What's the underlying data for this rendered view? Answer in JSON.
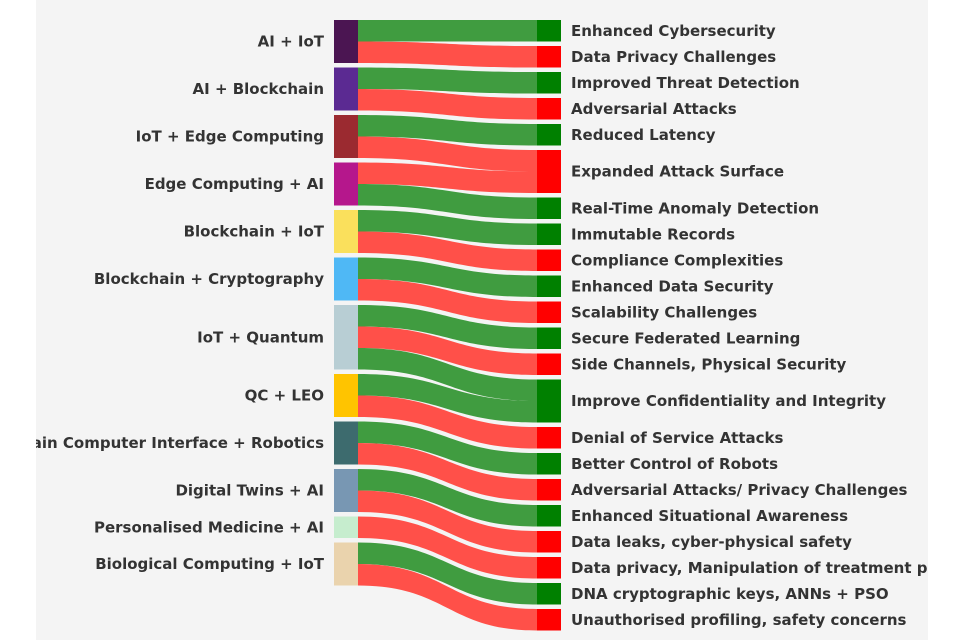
{
  "colors": {
    "positive": "#008000",
    "negative": "#ff0000",
    "positive_link": "#3c9a3c",
    "negative_link": "#ff4d45"
  },
  "sources": [
    {
      "id": "s0",
      "label": "AI + IoT",
      "color": "#4b1552"
    },
    {
      "id": "s1",
      "label": "AI + Blockchain",
      "color": "#5b2a92"
    },
    {
      "id": "s2",
      "label": "IoT + Edge Computing",
      "color": "#9b2a30"
    },
    {
      "id": "s3",
      "label": "Edge Computing + AI",
      "color": "#b5178c"
    },
    {
      "id": "s4",
      "label": "Blockchain + IoT",
      "color": "#fae05c"
    },
    {
      "id": "s5",
      "label": "Blockchain + Cryptography",
      "color": "#4fb8f5"
    },
    {
      "id": "s6",
      "label": "IoT + Quantum",
      "color": "#b8ced4"
    },
    {
      "id": "s7",
      "label": "QC + LEO",
      "color": "#ffc400"
    },
    {
      "id": "s8",
      "label": "Brain Computer Interface + Robotics",
      "color": "#3d6b6e"
    },
    {
      "id": "s9",
      "label": "Digital Twins + AI",
      "color": "#7897b3"
    },
    {
      "id": "s10",
      "label": "Personalised Medicine + AI",
      "color": "#c6edce"
    },
    {
      "id": "s11",
      "label": "Biological Computing + IoT",
      "color": "#ead3ad"
    }
  ],
  "targets": [
    {
      "id": "t0",
      "label": "Enhanced Cybersecurity",
      "polarity": "positive"
    },
    {
      "id": "t1",
      "label": "Data Privacy Challenges",
      "polarity": "negative"
    },
    {
      "id": "t2",
      "label": "Improved Threat Detection",
      "polarity": "positive"
    },
    {
      "id": "t3",
      "label": "Adversarial Attacks",
      "polarity": "negative"
    },
    {
      "id": "t4",
      "label": "Reduced Latency",
      "polarity": "positive"
    },
    {
      "id": "t5",
      "label": "Expanded Attack Surface",
      "polarity": "negative"
    },
    {
      "id": "t6",
      "label": "Real-Time Anomaly Detection",
      "polarity": "positive"
    },
    {
      "id": "t7",
      "label": "Immutable Records",
      "polarity": "positive"
    },
    {
      "id": "t8",
      "label": "Compliance Complexities",
      "polarity": "negative"
    },
    {
      "id": "t9",
      "label": "Enhanced Data Security",
      "polarity": "positive"
    },
    {
      "id": "t10",
      "label": "Scalability Challenges",
      "polarity": "negative"
    },
    {
      "id": "t11",
      "label": "Secure Federated Learning",
      "polarity": "positive"
    },
    {
      "id": "t12",
      "label": "Side Channels, Physical Security",
      "polarity": "negative"
    },
    {
      "id": "t13",
      "label": "Improve Confidentiality and Integrity",
      "polarity": "positive"
    },
    {
      "id": "t14",
      "label": "Denial of Service Attacks",
      "polarity": "negative"
    },
    {
      "id": "t15",
      "label": "Better Control of Robots",
      "polarity": "positive"
    },
    {
      "id": "t16",
      "label": "Adversarial Attacks/ Privacy Challenges",
      "polarity": "negative"
    },
    {
      "id": "t17",
      "label": "Enhanced Situational Awareness",
      "polarity": "positive"
    },
    {
      "id": "t18",
      "label": "Data leaks, cyber-physical safety",
      "polarity": "negative"
    },
    {
      "id": "t19",
      "label": "Data privacy, Manipulation of treatment plans",
      "polarity": "negative"
    },
    {
      "id": "t20",
      "label": "DNA cryptographic keys, ANNs + PSO",
      "polarity": "positive"
    },
    {
      "id": "t21",
      "label": "Unauthorised profiling, safety concerns",
      "polarity": "negative"
    }
  ],
  "links": [
    {
      "source": "s0",
      "target": "t0",
      "value": 1
    },
    {
      "source": "s0",
      "target": "t1",
      "value": 1
    },
    {
      "source": "s1",
      "target": "t2",
      "value": 1
    },
    {
      "source": "s1",
      "target": "t3",
      "value": 1
    },
    {
      "source": "s2",
      "target": "t4",
      "value": 1
    },
    {
      "source": "s2",
      "target": "t5",
      "value": 1
    },
    {
      "source": "s3",
      "target": "t5",
      "value": 1
    },
    {
      "source": "s3",
      "target": "t6",
      "value": 1
    },
    {
      "source": "s4",
      "target": "t7",
      "value": 1
    },
    {
      "source": "s4",
      "target": "t8",
      "value": 1
    },
    {
      "source": "s5",
      "target": "t9",
      "value": 1
    },
    {
      "source": "s5",
      "target": "t10",
      "value": 1
    },
    {
      "source": "s6",
      "target": "t11",
      "value": 1
    },
    {
      "source": "s6",
      "target": "t12",
      "value": 1
    },
    {
      "source": "s6",
      "target": "t13",
      "value": 1
    },
    {
      "source": "s7",
      "target": "t13",
      "value": 1
    },
    {
      "source": "s7",
      "target": "t14",
      "value": 1
    },
    {
      "source": "s8",
      "target": "t15",
      "value": 1
    },
    {
      "source": "s8",
      "target": "t16",
      "value": 1
    },
    {
      "source": "s9",
      "target": "t17",
      "value": 1
    },
    {
      "source": "s9",
      "target": "t18",
      "value": 1
    },
    {
      "source": "s10",
      "target": "t19",
      "value": 1
    },
    {
      "source": "s11",
      "target": "t20",
      "value": 1
    },
    {
      "source": "s11",
      "target": "t21",
      "value": 1
    }
  ]
}
